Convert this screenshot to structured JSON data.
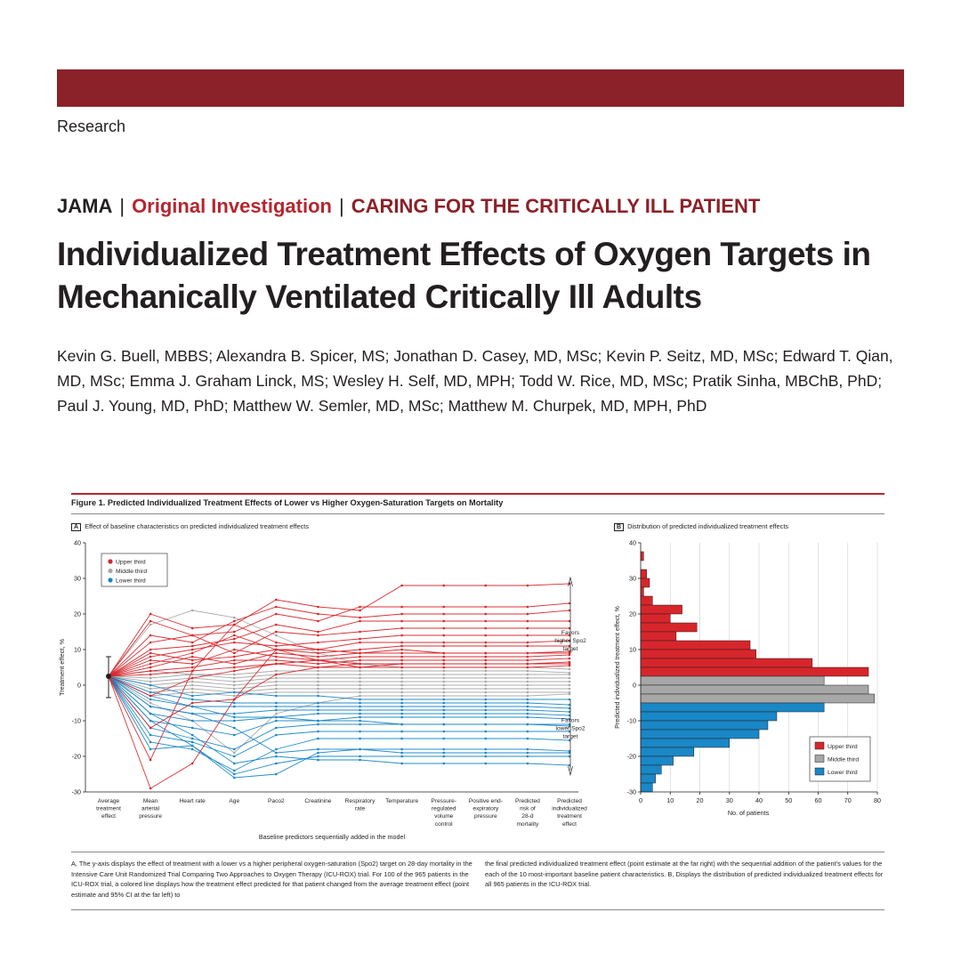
{
  "header": {
    "section": "Research",
    "journal": "JAMA",
    "separator": "|",
    "article_type": "Original Investigation",
    "category": "CARING FOR THE CRITICALLY ILL PATIENT",
    "title": "Individualized Treatment Effects of Oxygen Targets in Mechanically Ventilated Critically Ill Adults",
    "authors": "Kevin G. Buell, MBBS; Alexandra B. Spicer, MS; Jonathan D. Casey, MD, MSc; Kevin P. Seitz, MD, MSc; Edward T. Qian, MD, MSc; Emma J. Graham Linck, MS; Wesley H. Self, MD, MPH; Todd W. Rice, MD, MSc; Pratik Sinha, MBChB, PhD; Paul J. Young, MD, PhD; Matthew W. Semler, MD, MSc; Matthew M. Churpek, MD, MPH, PhD"
  },
  "colors": {
    "upper": "#d7262b",
    "middle": "#a7a7a7",
    "lower": "#1a87c6",
    "brand": "#8b2129"
  },
  "figure": {
    "title": "Figure 1. Predicted Individualized Treatment Effects of Lower vs Higher Oxygen-Saturation Targets on Mortality",
    "panel_a_letter": "A",
    "panel_a_title": "Effect of baseline characteristics on predicted individualized treatment effects",
    "panel_b_letter": "B",
    "panel_b_title": "Distribution of predicted individualized treatment effects",
    "caption_left": "A, The y-axis displays the effect of treatment with a lower vs a higher peripheral oxygen-saturation (Spo2) target on 28-day mortality in the Intensive Care Unit Randomized Trial Comparing Two Approaches to Oxygen Therapy (ICU-ROX) trial. For 100 of the 965 patients in the ICU-ROX trial, a colored line displays how the treatment effect predicted for that patient changed from the average treatment effect (point estimate and 95% CI at the far left) to",
    "caption_right": "the final predicted individualized treatment effect (point estimate at the far right) with the sequential addition of the patient's values for the each of the 10 most-important baseline patient characteristics. B, Displays the distribution of predicted individualized treatment effects for all 965 patients in the ICU-ROX trial."
  },
  "chart_data": [
    {
      "type": "line",
      "title": "Effect of baseline characteristics on predicted individualized treatment effects",
      "xlabel": "Baseline predictors sequentially added in the model",
      "ylabel": "Treatment effect, %",
      "ylim": [
        -30,
        40
      ],
      "yticks": [
        "40",
        "30",
        "20",
        "10",
        "0",
        "-10",
        "-20",
        "-30"
      ],
      "categories": [
        [
          "Average",
          "treatment",
          "effect"
        ],
        [
          "Mean",
          "arterial",
          "pressure"
        ],
        [
          "Heart rate"
        ],
        [
          "Age"
        ],
        [
          "Paco2"
        ],
        [
          "Creatinine"
        ],
        [
          "Respiratory",
          "rate"
        ],
        [
          "Temperature"
        ],
        [
          "Pressure-",
          "regulated",
          "volume",
          "control"
        ],
        [
          "Positive end-",
          "expiratory",
          "pressure"
        ],
        [
          "Predicted",
          "risk of",
          "28-d",
          "mortality"
        ],
        [
          "Predicted",
          "individualized",
          "treatment",
          "effect"
        ]
      ],
      "average_effect": {
        "estimate": 2.5,
        "ci": [
          -3.5,
          8.0
        ]
      },
      "legend": [
        "Upper third",
        "Middle third",
        "Lower third"
      ],
      "annotations": {
        "favors_higher": [
          "Favors",
          "higher Spo2",
          "target"
        ],
        "favors_lower": [
          "Favors",
          "lower Spo2",
          "target"
        ]
      },
      "series": [
        {
          "group": "upper",
          "values": [
            2.5,
            20,
            16,
            17,
            24,
            22,
            21,
            28,
            28,
            28,
            28,
            28.5
          ]
        },
        {
          "group": "upper",
          "values": [
            2.5,
            18,
            14,
            15,
            20,
            18,
            22,
            22,
            22,
            22,
            22,
            23
          ]
        },
        {
          "group": "upper",
          "values": [
            2.5,
            14,
            12,
            18,
            22,
            20,
            19,
            20,
            20,
            20,
            20,
            21
          ]
        },
        {
          "group": "upper",
          "values": [
            2.5,
            10,
            11,
            13,
            17,
            15,
            18,
            18,
            18,
            18,
            18,
            18
          ]
        },
        {
          "group": "upper",
          "values": [
            2.5,
            12,
            14,
            9,
            15,
            14,
            15,
            16,
            16,
            16,
            16,
            16
          ]
        },
        {
          "group": "upper",
          "values": [
            2.5,
            8,
            10,
            12,
            11,
            12,
            13,
            14,
            14,
            14,
            14,
            14
          ]
        },
        {
          "group": "upper",
          "values": [
            2.5,
            6,
            9,
            14,
            10,
            10,
            12,
            12,
            12,
            12,
            12,
            12.5
          ]
        },
        {
          "group": "upper",
          "values": [
            2.5,
            9,
            7,
            8,
            10,
            9,
            10,
            11,
            11,
            11,
            11,
            11
          ]
        },
        {
          "group": "upper",
          "values": [
            2.5,
            5,
            8,
            6,
            9,
            8,
            9,
            10,
            9,
            9,
            9,
            9.5
          ]
        },
        {
          "group": "upper",
          "values": [
            2.5,
            7,
            6,
            10,
            8,
            7,
            8,
            8,
            8,
            8,
            8,
            8.5
          ]
        },
        {
          "group": "upper",
          "values": [
            2.5,
            4,
            5,
            7,
            7,
            6,
            7,
            7,
            7,
            7,
            7,
            7.5
          ]
        },
        {
          "group": "upper",
          "values": [
            2.5,
            3,
            4,
            5,
            6,
            7,
            6,
            6,
            6,
            6,
            6,
            6.5
          ]
        },
        {
          "group": "upper",
          "values": [
            2.5,
            -3,
            2,
            4,
            6,
            5,
            6,
            6,
            6,
            6,
            6,
            6
          ]
        },
        {
          "group": "upper",
          "values": [
            2.5,
            -12,
            -5,
            -4,
            3,
            5,
            5,
            5,
            5,
            5,
            5,
            5.5
          ]
        },
        {
          "group": "upper",
          "values": [
            2.5,
            -29,
            -22,
            -4,
            10,
            7,
            5,
            6,
            6,
            6,
            6,
            6
          ]
        },
        {
          "group": "upper",
          "values": [
            2.5,
            -21,
            4,
            17,
            12,
            10,
            9,
            9,
            9,
            9,
            9,
            9
          ]
        },
        {
          "group": "middle",
          "values": [
            2.5,
            17,
            21,
            19,
            14,
            9,
            6,
            5,
            5,
            5,
            5,
            4.5
          ]
        },
        {
          "group": "middle",
          "values": [
            2.5,
            4,
            3,
            3,
            4,
            4,
            4,
            4,
            4,
            4,
            4,
            3.5
          ]
        },
        {
          "group": "middle",
          "values": [
            2.5,
            2,
            3,
            2,
            3,
            3,
            3,
            3,
            3,
            3,
            3,
            3
          ]
        },
        {
          "group": "middle",
          "values": [
            2.5,
            1,
            2,
            1,
            2,
            2,
            2,
            2,
            2,
            2,
            2,
            2
          ]
        },
        {
          "group": "middle",
          "values": [
            2.5,
            0,
            1,
            0,
            1,
            1,
            1,
            1,
            1,
            1,
            1,
            1
          ]
        },
        {
          "group": "middle",
          "values": [
            2.5,
            -1,
            0,
            -1,
            0,
            0,
            0,
            0,
            0,
            0,
            0,
            0
          ]
        },
        {
          "group": "middle",
          "values": [
            2.5,
            -2,
            -1,
            -2,
            -1,
            -1,
            -1,
            -1,
            -1,
            -1,
            -1,
            -1
          ]
        },
        {
          "group": "middle",
          "values": [
            2.5,
            -3,
            -2,
            -3,
            -2,
            -2,
            -2,
            -2,
            -2,
            -2,
            -2,
            -2
          ]
        },
        {
          "group": "middle",
          "values": [
            2.5,
            -5,
            -10,
            -19,
            -8,
            -5,
            -3,
            -3,
            -3,
            -3,
            -3,
            -2.5
          ]
        },
        {
          "group": "lower",
          "values": [
            2.5,
            0,
            -3,
            -2,
            -3,
            -3,
            -4,
            -4,
            -4,
            -4,
            -4,
            -4
          ]
        },
        {
          "group": "lower",
          "values": [
            2.5,
            -2,
            -4,
            -5,
            -5,
            -5,
            -5,
            -5,
            -5,
            -5,
            -5,
            -5.5
          ]
        },
        {
          "group": "lower",
          "values": [
            2.5,
            -4,
            -6,
            -6,
            -6,
            -6,
            -6,
            -6,
            -6,
            -6,
            -6,
            -6.5
          ]
        },
        {
          "group": "lower",
          "values": [
            2.5,
            -6,
            -8,
            -8,
            -7,
            -7,
            -7,
            -7,
            -7,
            -7,
            -7,
            -7.5
          ]
        },
        {
          "group": "lower",
          "values": [
            2.5,
            -8,
            -10,
            -10,
            -9,
            -8,
            -8,
            -8,
            -8,
            -8,
            -8,
            -8.5
          ]
        },
        {
          "group": "lower",
          "values": [
            2.5,
            -10,
            -12,
            -14,
            -10,
            -10,
            -9,
            -9,
            -9,
            -9,
            -9,
            -9.5
          ]
        },
        {
          "group": "lower",
          "values": [
            2.5,
            -12,
            -15,
            -18,
            -12,
            -11,
            -11,
            -11,
            -11,
            -11,
            -11,
            -11
          ]
        },
        {
          "group": "lower",
          "values": [
            2.5,
            -14,
            -16,
            -20,
            -14,
            -13,
            -13,
            -13,
            -13,
            -13,
            -13,
            -13
          ]
        },
        {
          "group": "lower",
          "values": [
            2.5,
            -16,
            -18,
            -24,
            -18,
            -15,
            -15,
            -15,
            -15,
            -15,
            -15,
            -15.5
          ]
        },
        {
          "group": "lower",
          "values": [
            2.5,
            -10,
            -17,
            -26,
            -25,
            -19,
            -18,
            -18,
            -18,
            -18,
            -18,
            -18.5
          ]
        },
        {
          "group": "lower",
          "values": [
            2.5,
            -18,
            -17,
            -25,
            -22,
            -20,
            -20,
            -20,
            -20,
            -20,
            -20,
            -20
          ]
        },
        {
          "group": "lower",
          "values": [
            2.5,
            -8,
            -14,
            -22,
            -20,
            -21,
            -21,
            -22,
            -22,
            -22,
            -22,
            -22.5
          ]
        },
        {
          "group": "lower",
          "values": [
            2.5,
            -6,
            -8,
            -12,
            -19,
            -18,
            -18,
            -19,
            -19,
            -19,
            -19,
            -19
          ]
        },
        {
          "group": "lower",
          "values": [
            2.5,
            -3,
            -6,
            -9,
            -9,
            -10,
            -10,
            -11,
            -11,
            -11,
            -11,
            -11.5
          ]
        }
      ]
    },
    {
      "type": "bar",
      "orientation": "horizontal",
      "title": "Distribution of predicted individualized treatment effects",
      "xlabel": "No. of patients",
      "ylabel": "Predicted individualized treatment effect, %",
      "ylim": [
        -30,
        40
      ],
      "xlim": [
        0,
        80
      ],
      "xticks": [
        "0",
        "10",
        "20",
        "30",
        "40",
        "50",
        "60",
        "70",
        "80"
      ],
      "yticks": [
        "40",
        "30",
        "20",
        "10",
        "0",
        "-10",
        "-20",
        "-30"
      ],
      "bin_width": 2.5,
      "legend": [
        "Upper third",
        "Middle third",
        "Lower third"
      ],
      "bins": [
        {
          "y": 35,
          "count": 1,
          "group": "upper"
        },
        {
          "y": 30,
          "count": 2,
          "group": "upper"
        },
        {
          "y": 27.5,
          "count": 3,
          "group": "upper"
        },
        {
          "y": 25,
          "count": 1,
          "group": "upper"
        },
        {
          "y": 22.5,
          "count": 4,
          "group": "upper"
        },
        {
          "y": 20,
          "count": 14,
          "group": "upper"
        },
        {
          "y": 17.5,
          "count": 10,
          "group": "upper"
        },
        {
          "y": 15,
          "count": 19,
          "group": "upper"
        },
        {
          "y": 12.5,
          "count": 12,
          "group": "upper"
        },
        {
          "y": 10,
          "count": 37,
          "group": "upper"
        },
        {
          "y": 7.5,
          "count": 39,
          "group": "upper"
        },
        {
          "y": 5,
          "count": 58,
          "group": "upper"
        },
        {
          "y": 2.5,
          "count": 77,
          "group": "upper"
        },
        {
          "y": 0,
          "count": 62,
          "group": "middle"
        },
        {
          "y": -2.5,
          "count": 77,
          "group": "middle"
        },
        {
          "y": -5,
          "count": 79,
          "group": "middle"
        },
        {
          "y": -7.5,
          "count": 62,
          "group": "lower"
        },
        {
          "y": -10,
          "count": 46,
          "group": "lower"
        },
        {
          "y": -12.5,
          "count": 43,
          "group": "lower"
        },
        {
          "y": -15,
          "count": 40,
          "group": "lower"
        },
        {
          "y": -17.5,
          "count": 30,
          "group": "lower"
        },
        {
          "y": -20,
          "count": 18,
          "group": "lower"
        },
        {
          "y": -22.5,
          "count": 11,
          "group": "lower"
        },
        {
          "y": -25,
          "count": 7,
          "group": "lower"
        },
        {
          "y": -27.5,
          "count": 5,
          "group": "lower"
        },
        {
          "y": -30,
          "count": 4,
          "group": "lower"
        }
      ]
    }
  ]
}
